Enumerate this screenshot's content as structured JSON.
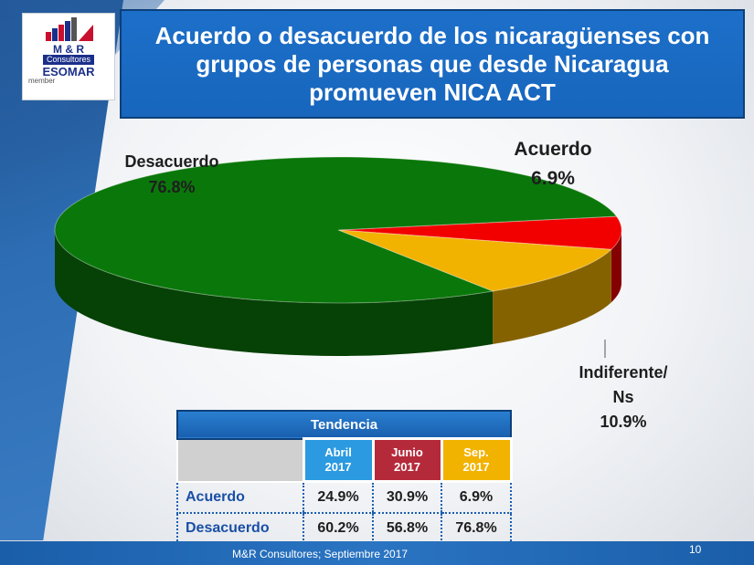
{
  "title": "Acuerdo o desacuerdo de los nicaragüenses con grupos de personas que desde Nicaragua promueven NICA ACT",
  "logo": {
    "brand": "M & R",
    "sub": "Consultores",
    "esomar": "ESOMAR",
    "member": "member"
  },
  "chart_data": {
    "type": "pie",
    "style": "3d",
    "slices": [
      {
        "label": "Acuerdo",
        "value": 6.9,
        "display": "6.9%",
        "color": "#f20000"
      },
      {
        "label": "Indiferente/ Ns",
        "value": 10.9,
        "display": "10.9%",
        "color": "#f2b200"
      },
      {
        "label": "Desacuerdo",
        "value": 76.8,
        "display": "76.8%",
        "color": "#0a770a"
      }
    ],
    "labels": {
      "desacuerdo": {
        "name": "Desacuerdo",
        "value": "76.8%"
      },
      "acuerdo": {
        "name": "Acuerdo",
        "value": "6.9%"
      },
      "indiferente": {
        "name_line1": "Indiferente/",
        "name_line2": "Ns",
        "value": "10.9%"
      }
    }
  },
  "trend_table": {
    "title": "Tendencia",
    "columns": [
      {
        "line1": "Abril",
        "line2": "2017",
        "color": "#2b9ae0"
      },
      {
        "line1": "Junio",
        "line2": "2017",
        "color": "#b52a3a"
      },
      {
        "line1": "Sep.",
        "line2": "2017",
        "color": "#f2b200"
      }
    ],
    "rows": [
      {
        "label": "Acuerdo",
        "values": [
          "24.9%",
          "30.9%",
          "6.9%"
        ]
      },
      {
        "label": "Desacuerdo",
        "values": [
          "60.2%",
          "56.8%",
          "76.8%"
        ]
      }
    ]
  },
  "footer": {
    "source": "M&R Consultores; Septiembre 2017",
    "page": "10"
  }
}
